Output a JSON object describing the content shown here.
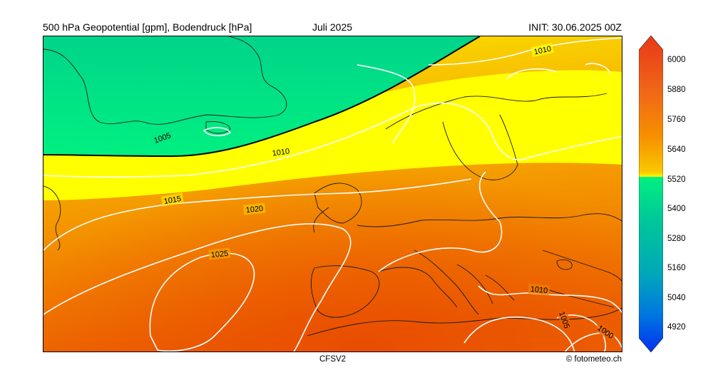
{
  "header": {
    "left_title": "500 hPa Geopotential [gpm], Bodendruck [hPa]",
    "center_title": "Juli 2025",
    "right_title": "INIT: 30.06.2025 00Z"
  },
  "footer": {
    "model": "CFSV2",
    "credit": "© fotometeo.ch"
  },
  "map": {
    "contour_labels": [
      "1010",
      "1005",
      "1010",
      "1015",
      "1020",
      "1025",
      "1010",
      "1005",
      "1000"
    ],
    "colors": {
      "low": "#00e883",
      "transition": "#f8f800",
      "mid": "#f7b000",
      "high": "#ee5a00",
      "isobar": "#ffffff",
      "coastline": "#1a1a1a"
    }
  },
  "colorbar": {
    "ticks": [
      "6000",
      "5880",
      "5760",
      "5640",
      "5520",
      "5400",
      "5280",
      "5160",
      "5040",
      "4920"
    ],
    "colors": [
      "#0030f0",
      "#0078e0",
      "#00a8b8",
      "#00c898",
      "#00e080",
      "#f8f800",
      "#f8c800",
      "#f79000",
      "#f06818",
      "#e83818"
    ]
  }
}
